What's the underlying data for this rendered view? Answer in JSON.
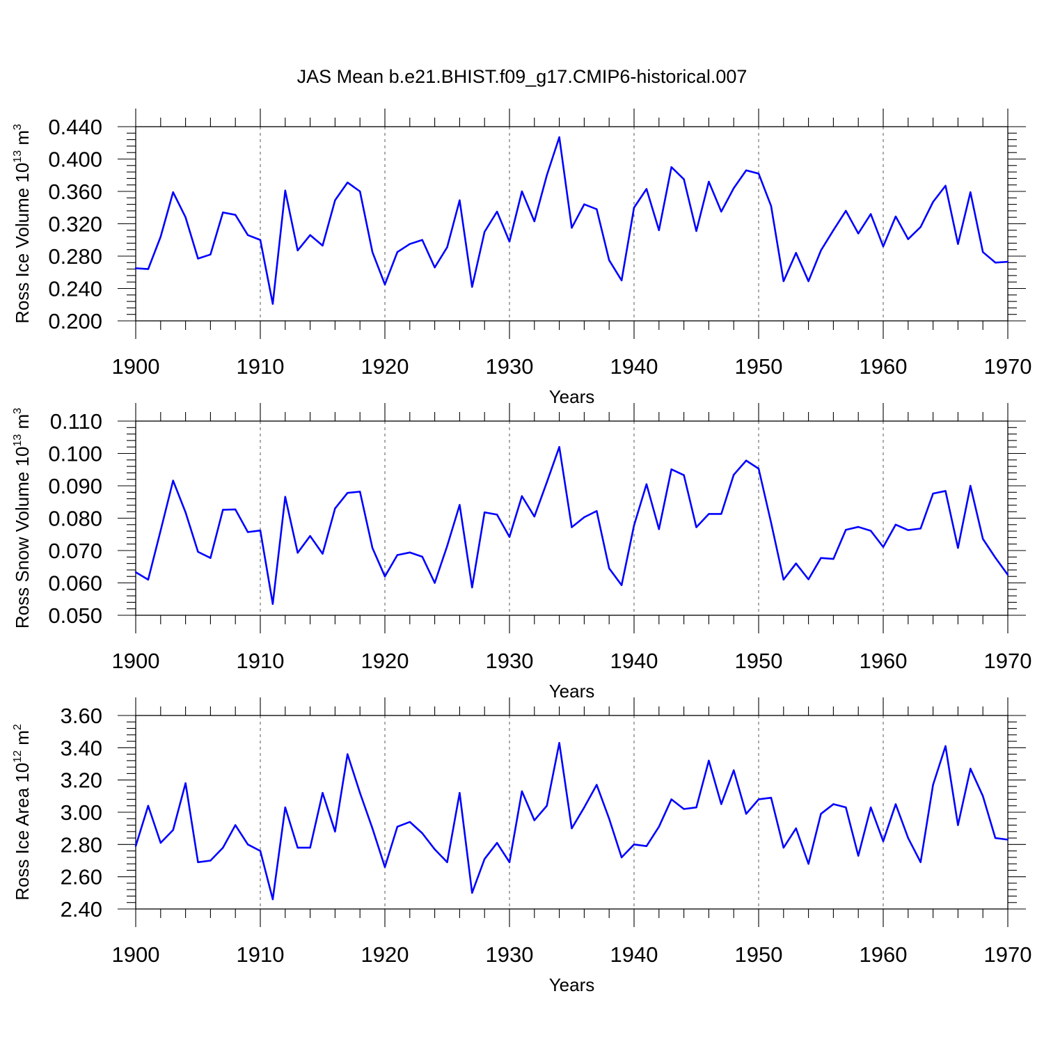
{
  "title": "JAS Mean b.e21.BHIST.f09_g17.CMIP6-historical.007",
  "colors": {
    "line": "#0000ff",
    "axis": "#000000",
    "grid": "#555555"
  },
  "chart_data": [
    {
      "type": "line",
      "id": "ice_volume",
      "ylabel": {
        "text": "Ross Ice Volume 10",
        "exp1": "13",
        "unit": " m",
        "exp2": "3"
      },
      "xlabel": "Years",
      "xlim": [
        1900,
        1970
      ],
      "ylim": [
        0.2,
        0.44
      ],
      "xticks": [
        1900,
        1910,
        1920,
        1930,
        1940,
        1950,
        1960,
        1970
      ],
      "xtick_labels": [
        "1900",
        "1910",
        "1920",
        "1930",
        "1940",
        "1950",
        "1960",
        "1970"
      ],
      "yticks": [
        0.2,
        0.24,
        0.28,
        0.32,
        0.36,
        0.4,
        0.44
      ],
      "ytick_labels": [
        "0.200",
        "0.240",
        "0.280",
        "0.320",
        "0.360",
        "0.400",
        "0.440"
      ],
      "grid": "vertical dashed at major x ticks",
      "x": [
        1900,
        1901,
        1902,
        1903,
        1904,
        1905,
        1906,
        1907,
        1908,
        1909,
        1910,
        1911,
        1912,
        1913,
        1914,
        1915,
        1916,
        1917,
        1918,
        1919,
        1920,
        1921,
        1922,
        1923,
        1924,
        1925,
        1926,
        1927,
        1928,
        1929,
        1930,
        1931,
        1932,
        1933,
        1934,
        1935,
        1936,
        1937,
        1938,
        1939,
        1940,
        1941,
        1942,
        1943,
        1944,
        1945,
        1946,
        1947,
        1948,
        1949,
        1950,
        1951,
        1952,
        1953,
        1954,
        1955,
        1956,
        1957,
        1958,
        1959,
        1960,
        1961,
        1962,
        1963,
        1964,
        1965,
        1966,
        1967,
        1968,
        1969,
        1970
      ],
      "series": [
        {
          "values": [
            0.265,
            0.264,
            0.304,
            0.359,
            0.328,
            0.277,
            0.282,
            0.334,
            0.331,
            0.306,
            0.3,
            0.221,
            0.361,
            0.287,
            0.306,
            0.293,
            0.349,
            0.371,
            0.36,
            0.285,
            0.245,
            0.285,
            0.295,
            0.3,
            0.266,
            0.291,
            0.349,
            0.242,
            0.31,
            0.335,
            0.298,
            0.36,
            0.323,
            0.38,
            0.427,
            0.315,
            0.344,
            0.338,
            0.275,
            0.25,
            0.34,
            0.363,
            0.312,
            0.39,
            0.375,
            0.311,
            0.372,
            0.335,
            0.364,
            0.386,
            0.382,
            0.342,
            0.249,
            0.284,
            0.249,
            0.287,
            0.312,
            0.336,
            0.308,
            0.332,
            0.292,
            0.329,
            0.301,
            0.316,
            0.347,
            0.367,
            0.295,
            0.359,
            0.285,
            0.272,
            0.273
          ]
        }
      ]
    },
    {
      "type": "line",
      "id": "snow_volume",
      "ylabel": {
        "text": "Ross Snow Volume 10",
        "exp1": "13",
        "unit": " m",
        "exp2": "3"
      },
      "xlabel": "Years",
      "xlim": [
        1900,
        1970
      ],
      "ylim": [
        0.05,
        0.11
      ],
      "xticks": [
        1900,
        1910,
        1920,
        1930,
        1940,
        1950,
        1960,
        1970
      ],
      "xtick_labels": [
        "1900",
        "1910",
        "1920",
        "1930",
        "1940",
        "1950",
        "1960",
        "1970"
      ],
      "yticks": [
        0.05,
        0.06,
        0.07,
        0.08,
        0.09,
        0.1,
        0.11
      ],
      "ytick_labels": [
        "0.050",
        "0.060",
        "0.070",
        "0.080",
        "0.090",
        "0.100",
        "0.110"
      ],
      "grid": "vertical dashed at major x ticks",
      "x": [
        1900,
        1901,
        1902,
        1903,
        1904,
        1905,
        1906,
        1907,
        1908,
        1909,
        1910,
        1911,
        1912,
        1913,
        1914,
        1915,
        1916,
        1917,
        1918,
        1919,
        1920,
        1921,
        1922,
        1923,
        1924,
        1925,
        1926,
        1927,
        1928,
        1929,
        1930,
        1931,
        1932,
        1933,
        1934,
        1935,
        1936,
        1937,
        1938,
        1939,
        1940,
        1941,
        1942,
        1943,
        1944,
        1945,
        1946,
        1947,
        1948,
        1949,
        1950,
        1951,
        1952,
        1953,
        1954,
        1955,
        1956,
        1957,
        1958,
        1959,
        1960,
        1961,
        1962,
        1963,
        1964,
        1965,
        1966,
        1967,
        1968,
        1969,
        1970
      ],
      "series": [
        {
          "values": [
            0.0633,
            0.061,
            0.0762,
            0.0916,
            0.0818,
            0.0696,
            0.0677,
            0.0826,
            0.0827,
            0.0757,
            0.0762,
            0.0535,
            0.0866,
            0.0693,
            0.0745,
            0.069,
            0.083,
            0.0878,
            0.0882,
            0.0708,
            0.062,
            0.0686,
            0.0694,
            0.0681,
            0.06,
            0.0714,
            0.0841,
            0.0586,
            0.0818,
            0.0811,
            0.0742,
            0.0868,
            0.0805,
            0.0911,
            0.102,
            0.0772,
            0.0803,
            0.0822,
            0.0645,
            0.0593,
            0.0778,
            0.0905,
            0.0766,
            0.0951,
            0.0933,
            0.0772,
            0.0813,
            0.0813,
            0.0934,
            0.0978,
            0.0953,
            0.0786,
            0.061,
            0.066,
            0.0611,
            0.0677,
            0.0674,
            0.0764,
            0.0773,
            0.0761,
            0.0711,
            0.078,
            0.0763,
            0.0768,
            0.0876,
            0.0884,
            0.0708,
            0.09,
            0.0736,
            0.0678,
            0.0625
          ]
        }
      ]
    },
    {
      "type": "line",
      "id": "ice_area",
      "ylabel": {
        "text": "Ross Ice Area 10",
        "exp1": "12",
        "unit": " m",
        "exp2": "2"
      },
      "xlabel": "Years",
      "xlim": [
        1900,
        1970
      ],
      "ylim": [
        2.4,
        3.6
      ],
      "xticks": [
        1900,
        1910,
        1920,
        1930,
        1940,
        1950,
        1960,
        1970
      ],
      "xtick_labels": [
        "1900",
        "1910",
        "1920",
        "1930",
        "1940",
        "1950",
        "1960",
        "1970"
      ],
      "yticks": [
        2.4,
        2.6,
        2.8,
        3.0,
        3.2,
        3.4,
        3.6
      ],
      "ytick_labels": [
        "2.40",
        "2.60",
        "2.80",
        "3.00",
        "3.20",
        "3.40",
        "3.60"
      ],
      "grid": "vertical dashed at major x ticks",
      "x": [
        1900,
        1901,
        1902,
        1903,
        1904,
        1905,
        1906,
        1907,
        1908,
        1909,
        1910,
        1911,
        1912,
        1913,
        1914,
        1915,
        1916,
        1917,
        1918,
        1919,
        1920,
        1921,
        1922,
        1923,
        1924,
        1925,
        1926,
        1927,
        1928,
        1929,
        1930,
        1931,
        1932,
        1933,
        1934,
        1935,
        1936,
        1937,
        1938,
        1939,
        1940,
        1941,
        1942,
        1943,
        1944,
        1945,
        1946,
        1947,
        1948,
        1949,
        1950,
        1951,
        1952,
        1953,
        1954,
        1955,
        1956,
        1957,
        1958,
        1959,
        1960,
        1961,
        1962,
        1963,
        1964,
        1965,
        1966,
        1967,
        1968,
        1969,
        1970
      ],
      "series": [
        {
          "values": [
            2.79,
            3.04,
            2.81,
            2.89,
            3.18,
            2.69,
            2.7,
            2.78,
            2.92,
            2.8,
            2.76,
            2.46,
            3.03,
            2.78,
            2.78,
            3.12,
            2.88,
            3.36,
            3.12,
            2.9,
            2.66,
            2.91,
            2.94,
            2.87,
            2.77,
            2.69,
            3.12,
            2.5,
            2.71,
            2.81,
            2.69,
            3.13,
            2.95,
            3.04,
            3.43,
            2.9,
            3.03,
            3.17,
            2.96,
            2.72,
            2.8,
            2.79,
            2.91,
            3.08,
            3.02,
            3.03,
            3.32,
            3.05,
            3.26,
            2.99,
            3.08,
            3.09,
            2.78,
            2.9,
            2.68,
            2.99,
            3.05,
            3.03,
            2.73,
            3.03,
            2.82,
            3.05,
            2.84,
            2.69,
            3.17,
            3.41,
            2.92,
            3.27,
            3.1,
            2.84,
            2.83
          ]
        }
      ]
    }
  ]
}
